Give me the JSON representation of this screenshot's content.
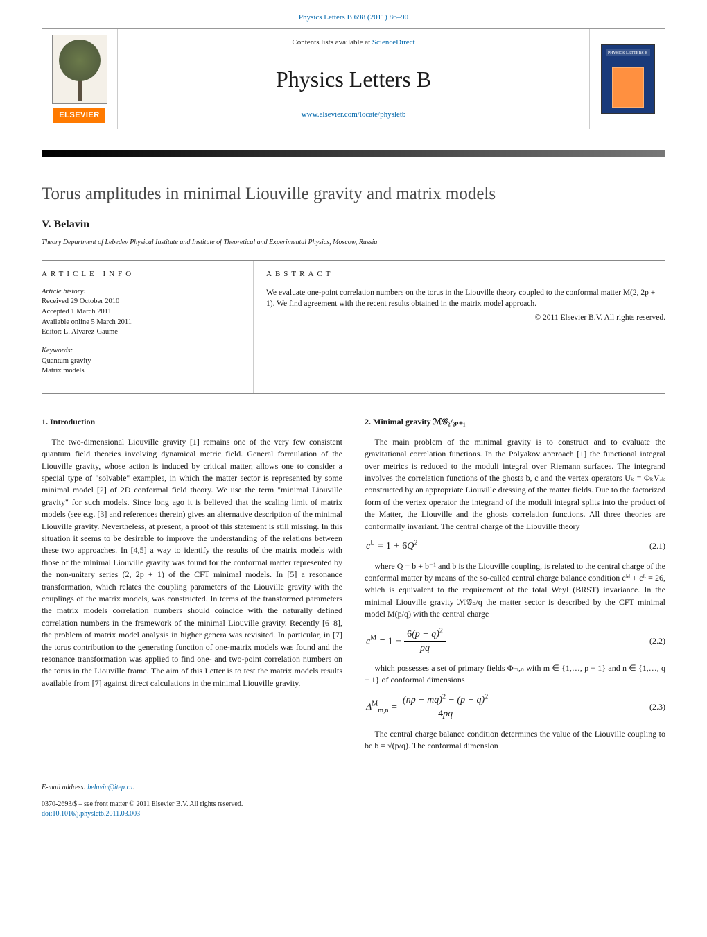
{
  "header_citation": {
    "prefix_link": "Physics Letters B 698 (2011) 86–90"
  },
  "masthead": {
    "contents_line_prefix": "Contents lists available at ",
    "contents_line_link": "ScienceDirect",
    "journal_name": "Physics Letters B",
    "journal_url": "www.elsevier.com/locate/physletb",
    "elsevier_text": "ELSEVIER",
    "cover_label": "PHYSICS LETTERS B"
  },
  "colors": {
    "elsevier_orange": "#ff7a00",
    "link_blue": "#0066aa",
    "cover_blue": "#1a3a7a",
    "gradient_start": "#000000",
    "gradient_end": "#777777"
  },
  "article": {
    "title": "Torus amplitudes in minimal Liouville gravity and matrix models",
    "author": "V. Belavin",
    "affiliation": "Theory Department of Lebedev Physical Institute and Institute of Theoretical and Experimental Physics, Moscow, Russia"
  },
  "info": {
    "heading": "article info",
    "history_label": "Article history:",
    "received": "Received 29 October 2010",
    "accepted": "Accepted 1 March 2011",
    "online": "Available online 5 March 2011",
    "editor": "Editor: L. Alvarez-Gaumé",
    "keywords_label": "Keywords:",
    "kw1": "Quantum gravity",
    "kw2": "Matrix models"
  },
  "abstract": {
    "heading": "abstract",
    "text": "We evaluate one-point correlation numbers on the torus in the Liouville theory coupled to the conformal matter M(2, 2p + 1). We find agreement with the recent results obtained in the matrix model approach.",
    "copyright": "© 2011 Elsevier B.V. All rights reserved."
  },
  "sections": {
    "s1_heading": "1. Introduction",
    "s1_para1": "The two-dimensional Liouville gravity [1] remains one of the very few consistent quantum field theories involving dynamical metric field. General formulation of the Liouville gravity, whose action is induced by critical matter, allows one to consider a special type of \"solvable\" examples, in which the matter sector is represented by some minimal model [2] of 2D conformal field theory. We use the term \"minimal Liouville gravity\" for such models. Since long ago it is believed that the scaling limit of matrix models (see e.g. [3] and references therein) gives an alternative description of the minimal Liouville gravity. Nevertheless, at present, a proof of this statement is still missing. In this situation it seems to be desirable to improve the understanding of the relations between these two approaches. In [4,5] a way to identify the results of the matrix models with those of the minimal Liouville gravity was found for the conformal matter represented by the non-unitary series (2, 2p + 1) of the CFT minimal models. In [5] a resonance transformation, which relates the coupling parameters of the Liouville gravity with the couplings of the matrix models, was constructed. In terms of the transformed parameters the matrix models correlation numbers should coincide with the naturally defined correlation numbers in the framework of the minimal Liouville gravity. Recently [6–8], the problem of matrix model analysis in higher genera was revisited. In particular, in [7] the torus contribution to the generating function of one-matrix models was found and the resonance transformation was applied to find one- and two-point correlation numbers on the torus in the Liouville frame. The aim of this Letter is to test the matrix models results available from [7] against direct calculations in the minimal Liouville gravity.",
    "s2_heading": "2. Minimal gravity ℳ𝒢₂/₂ₚ₊₁",
    "s2_para1": "The main problem of the minimal gravity is to construct and to evaluate the gravitational correlation functions. In the Polyakov approach [1] the functional integral over metrics is reduced to the moduli integral over Riemann surfaces. The integrand involves the correlation functions of the ghosts b, c and the vertex operators Uₖ = ΦₖVₐₖ constructed by an appropriate Liouville dressing of the matter fields. Due to the factorized form of the vertex operator the integrand of the moduli integral splits into the product of the Matter, the Liouville and the ghosts correlation functions. All three theories are conformally invariant. The central charge of the Liouville theory",
    "s2_para2": "where Q = b + b⁻¹ and b is the Liouville coupling, is related to the central charge of the conformal matter by means of the so-called central charge balance condition cᴹ + cᴸ = 26, which is equivalent to the requirement of the total Weyl (BRST) invariance. In the minimal Liouville gravity ℳ𝒢ₚ/q the matter sector is described by the CFT minimal model M(p/q) with the central charge",
    "s2_para3": "which possesses a set of primary fields Φₘ,ₙ with m ∈ {1,…, p − 1} and n ∈ {1,…, q − 1} of conformal dimensions",
    "s2_para4": "The central charge balance condition determines the value of the Liouville coupling to be b = √(p/q). The conformal dimension"
  },
  "equations": {
    "eq21_num": "(2.1)",
    "eq22_num": "(2.2)",
    "eq23_num": "(2.3)"
  },
  "footer": {
    "email_label": "E-mail address: ",
    "email": "belavin@itep.ru",
    "issn_line": "0370-2693/$ – see front matter © 2011 Elsevier B.V. All rights reserved.",
    "doi": "doi:10.1016/j.physletb.2011.03.003"
  }
}
